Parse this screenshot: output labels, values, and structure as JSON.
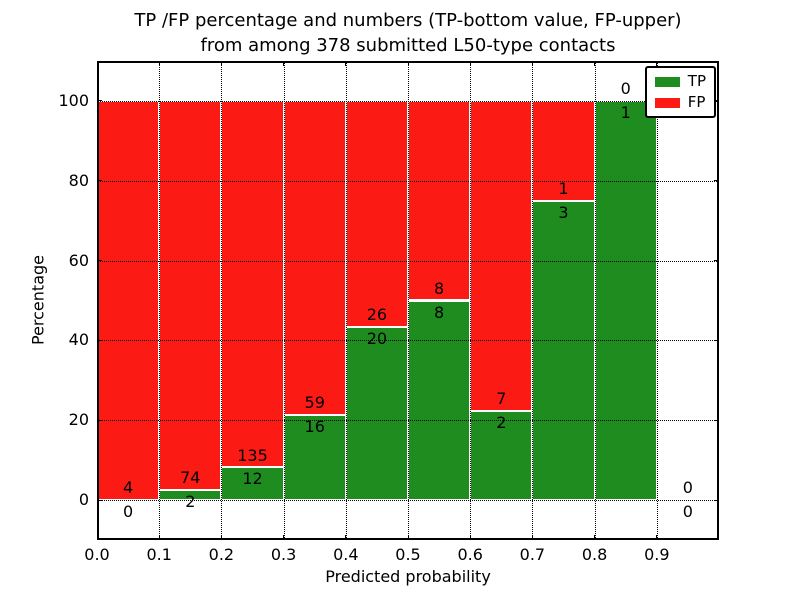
{
  "chart_data": {
    "type": "bar",
    "subtype": "stacked-percentage-histogram",
    "title_line1": "TP /FP percentage and numbers (TP-bottom value, FP-upper)",
    "title_line2": "from among 378 submitted L50-type contacts",
    "xlabel": "Predicted probability",
    "ylabel": "Percentage",
    "xlim": [
      0.0,
      1.0
    ],
    "ylim": [
      -10,
      110
    ],
    "xticks": [
      0.0,
      0.1,
      0.2,
      0.3,
      0.4,
      0.5,
      0.6,
      0.7,
      0.8,
      0.9
    ],
    "xtick_labels": [
      "0.0",
      "0.1",
      "0.2",
      "0.3",
      "0.4",
      "0.5",
      "0.6",
      "0.7",
      "0.8",
      "0.9"
    ],
    "yticks": [
      0,
      20,
      40,
      60,
      80,
      100
    ],
    "ytick_labels": [
      "0",
      "20",
      "40",
      "60",
      "80",
      "100"
    ],
    "grid": true,
    "grid_style": "dotted",
    "total_contacts": 378,
    "legend": {
      "position": "upper right",
      "entries": [
        {
          "label": "TP",
          "color": "#1e8c1e"
        },
        {
          "label": "FP",
          "color": "#fc1a15"
        }
      ]
    },
    "bins": [
      {
        "range": [
          0.0,
          0.1
        ],
        "tp": 0,
        "fp": 4
      },
      {
        "range": [
          0.1,
          0.2
        ],
        "tp": 2,
        "fp": 74
      },
      {
        "range": [
          0.2,
          0.3
        ],
        "tp": 12,
        "fp": 135
      },
      {
        "range": [
          0.3,
          0.4
        ],
        "tp": 16,
        "fp": 59
      },
      {
        "range": [
          0.4,
          0.5
        ],
        "tp": 20,
        "fp": 26
      },
      {
        "range": [
          0.5,
          0.6
        ],
        "tp": 8,
        "fp": 8
      },
      {
        "range": [
          0.6,
          0.7
        ],
        "tp": 2,
        "fp": 7
      },
      {
        "range": [
          0.7,
          0.8
        ],
        "tp": 3,
        "fp": 1
      },
      {
        "range": [
          0.8,
          0.9
        ],
        "tp": 1,
        "fp": 0
      },
      {
        "range": [
          0.9,
          1.0
        ],
        "tp": 0,
        "fp": 0
      }
    ]
  }
}
